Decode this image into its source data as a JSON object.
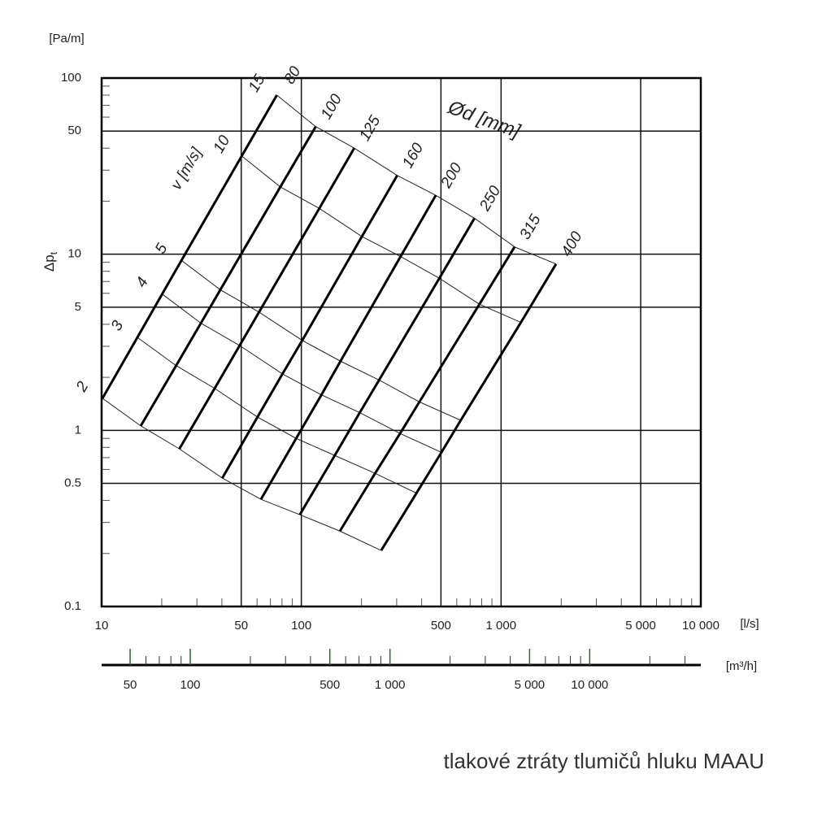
{
  "chart_data": {
    "type": "nomogram",
    "ylabel": "Δp",
    "ylabel_sub": "t",
    "yunit": "[Pa/m]",
    "xunit": "[l/s]",
    "x2unit": "[m³/h]",
    "diameter_label": "Ød [mm]",
    "velocity_label": "v [m/s]",
    "caption": "tlakové ztráty tlumičů hluku MAAU",
    "xscale": "log",
    "yscale": "log",
    "grid": true,
    "xlim": [
      10,
      10000
    ],
    "ylim": [
      0.1,
      100
    ],
    "xticks": [
      10,
      50,
      100,
      500,
      {
        "value": 1000,
        "label": "1 000"
      },
      {
        "value": 5000,
        "label": "5 000"
      },
      {
        "value": 10000,
        "label": "10 000"
      }
    ],
    "xminorticks": [
      20,
      30,
      40,
      60,
      70,
      80,
      90,
      200,
      300,
      400,
      600,
      700,
      800,
      900,
      2000,
      3000,
      4000,
      6000,
      7000,
      8000,
      9000
    ],
    "yticks": [
      0.1,
      0.5,
      1,
      5,
      10,
      50,
      100
    ],
    "yminorticks": [
      0.2,
      0.3,
      0.4,
      0.6,
      0.7,
      0.8,
      0.9,
      2,
      3,
      4,
      6,
      7,
      8,
      9,
      20,
      30,
      40,
      60,
      70,
      80,
      90
    ],
    "x2lim": [
      36,
      36000
    ],
    "x2ticks": [
      50,
      100,
      500,
      {
        "value": 1000,
        "label": "1 000"
      },
      {
        "value": 5000,
        "label": "5 000"
      },
      {
        "value": 10000,
        "label": "10 000"
      }
    ],
    "x2minorticks": [
      60,
      70,
      80,
      90,
      200,
      300,
      400,
      600,
      700,
      800,
      900,
      2000,
      3000,
      4000,
      6000,
      7000,
      8000,
      9000,
      20000,
      30000
    ],
    "velocities": [
      2,
      3,
      4,
      5,
      10,
      15
    ],
    "series": [
      {
        "name": "80",
        "x": [
          10.1,
          15.1,
          20.1,
          25.1,
          50.3,
          75.4
        ],
        "values": [
          1.52,
          3.37,
          5.94,
          9.22,
          36.1,
          80
        ]
      },
      {
        "name": "100",
        "x": [
          15.7,
          23.6,
          31.4,
          39.3,
          78.5,
          118
        ],
        "values": [
          1.06,
          2.33,
          4.06,
          6.28,
          24.1,
          53
        ]
      },
      {
        "name": "125",
        "x": [
          24.5,
          36.8,
          49.1,
          61.4,
          123,
          184
        ],
        "values": [
          0.785,
          1.73,
          3.03,
          4.69,
          18.2,
          40
        ]
      },
      {
        "name": "160",
        "x": [
          40.2,
          60.3,
          80.4,
          101,
          201,
          302
        ],
        "values": [
          0.536,
          1.19,
          2.09,
          3.24,
          12.6,
          28
        ]
      },
      {
        "name": "200",
        "x": [
          62.8,
          94.2,
          126,
          157,
          314,
          471
        ],
        "values": [
          0.406,
          0.9,
          1.59,
          2.47,
          9.7,
          21.6
        ]
      },
      {
        "name": "250",
        "x": [
          98.2,
          147,
          196,
          245,
          491,
          736
        ],
        "values": [
          0.332,
          0.72,
          1.26,
          1.93,
          7.3,
          16
        ]
      },
      {
        "name": "315",
        "x": [
          156,
          234,
          312,
          390,
          779,
          1169
        ],
        "values": [
          0.268,
          0.57,
          0.96,
          1.45,
          5.2,
          11
        ]
      },
      {
        "name": "400",
        "x": [
          251,
          377,
          503,
          628,
          1257,
          1885
        ],
        "values": [
          0.208,
          0.44,
          0.75,
          1.14,
          4.1,
          8.8
        ]
      }
    ]
  }
}
